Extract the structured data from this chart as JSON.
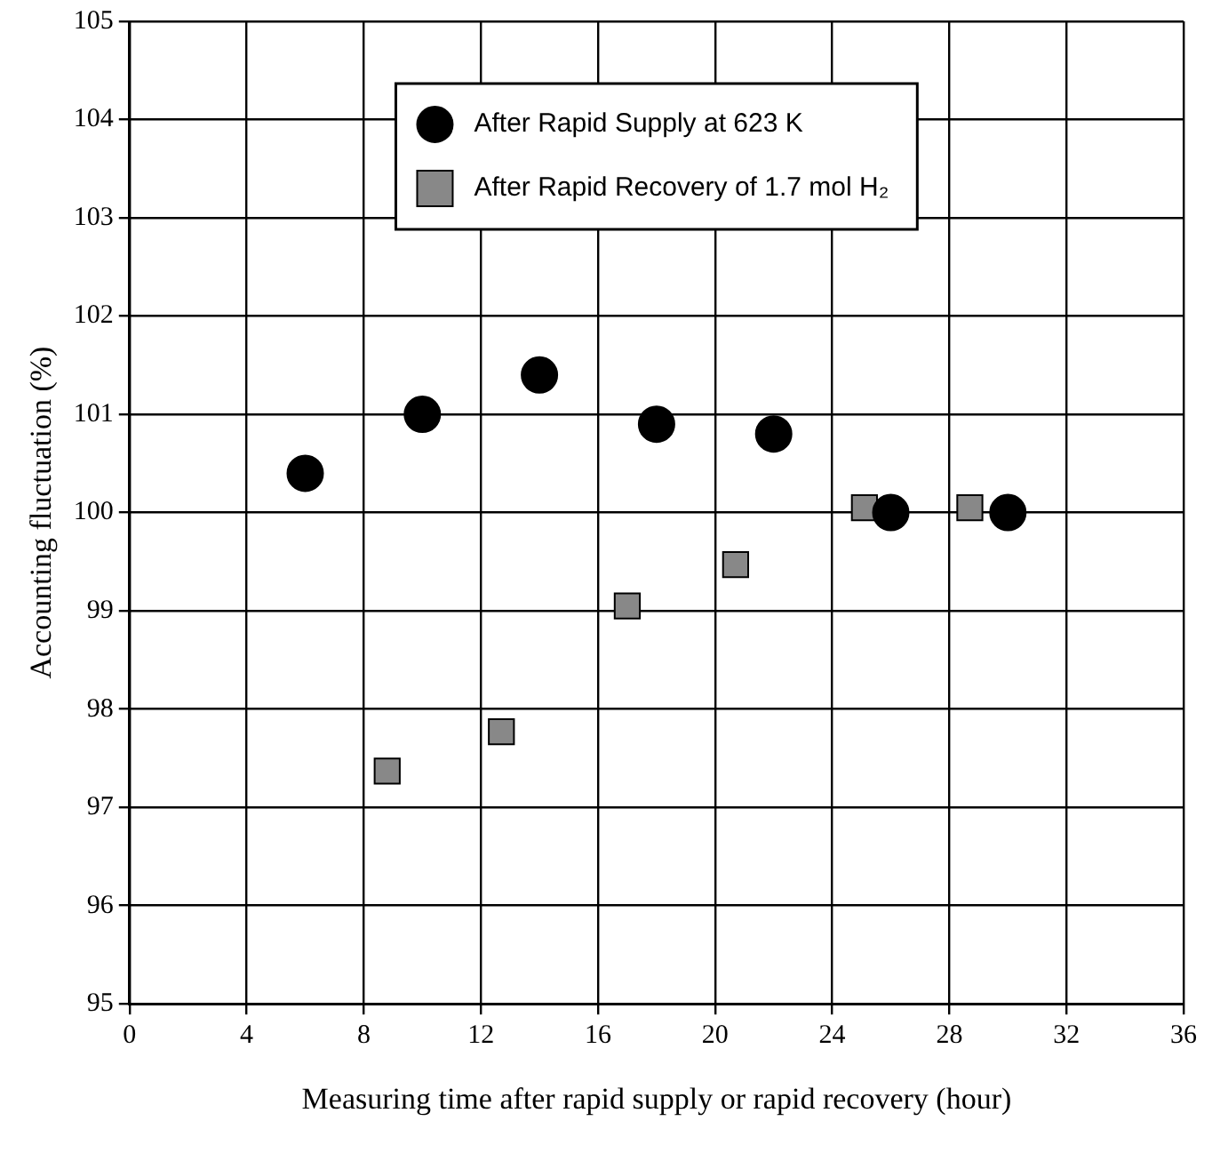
{
  "chart_data": {
    "type": "scatter",
    "xlabel": "Measuring time after rapid supply or rapid recovery (hour)",
    "ylabel": "Accounting fluctuation (%)",
    "xlim": [
      0,
      36
    ],
    "xticks": [
      0,
      4,
      8,
      12,
      16,
      20,
      24,
      28,
      32,
      36
    ],
    "ylim": [
      95,
      105
    ],
    "yticks": [
      95,
      96,
      97,
      98,
      99,
      100,
      101,
      102,
      103,
      104,
      105
    ],
    "grid": true,
    "legend": "top",
    "series": [
      {
        "name": "After Rapid Supply at 623 K",
        "color": "#000000",
        "marker": "circle",
        "x": [
          6,
          10,
          14,
          18,
          22,
          26,
          30
        ],
        "values": [
          100.4,
          101.0,
          101.4,
          100.9,
          100.8,
          100.0,
          100.0
        ]
      },
      {
        "name": "After Rapid Recovery of 1.7 mol H₂",
        "color": "#888888",
        "marker": "square",
        "x": [
          8.8,
          12.7,
          17.0,
          20.7,
          25.1,
          28.7
        ],
        "values": [
          97.37,
          97.77,
          99.05,
          99.47,
          100.05,
          100.05
        ]
      }
    ]
  }
}
